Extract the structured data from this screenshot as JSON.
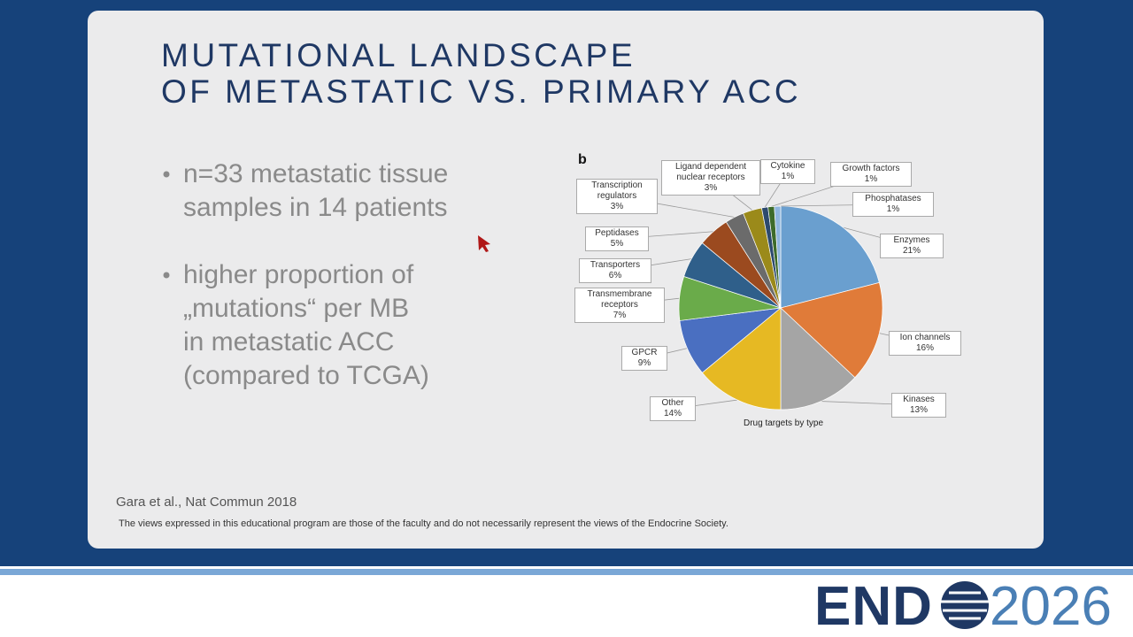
{
  "title": [
    "MUTATIONAL LANDSCAPE",
    "OF METASTATIC VS. PRIMARY ACC"
  ],
  "bullets": [
    [
      "n=33 metastatic tissue",
      "samples in 14 patients"
    ],
    [
      "higher proportion of",
      "„mutations“ per MB",
      "in metastatic ACC",
      "(compared to TCGA)"
    ]
  ],
  "panel_label": "b",
  "citation": "Gara et al., Nat Commun 2018",
  "disclaimer": "The views expressed in this educational program are those of the faculty and do not necessarily represent the views of the Endocrine Society.",
  "logo": {
    "left": "END",
    "right": "2026"
  },
  "chart_data": {
    "type": "pie",
    "title": "Drug targets by type",
    "categories": [
      "Enzymes",
      "Ion channels",
      "Kinases",
      "Other",
      "GPCR",
      "Transmembrane receptors",
      "Transporters",
      "Peptidases",
      "Transcription regulators",
      "Ligand dependent nuclear receptors",
      "Cytokine",
      "Growth factors",
      "Phosphatases"
    ],
    "values": [
      21,
      16,
      13,
      14,
      9,
      7,
      6,
      5,
      3,
      3,
      1,
      1,
      1
    ],
    "value_labels": [
      "21%",
      "16%",
      "13%",
      "14%",
      "9%",
      "7%",
      "6%",
      "5%",
      "3%",
      "3%",
      "1%",
      "1%",
      "1%"
    ],
    "colors": [
      "#6a9fcf",
      "#e07b39",
      "#a5a5a5",
      "#e6b923",
      "#4a6fc1",
      "#6aab4a",
      "#2f5f8a",
      "#9b4a1f",
      "#6b6b6b",
      "#9b8a1a",
      "#2d4a6e",
      "#3d6b2a",
      "#8fb6dd"
    ]
  }
}
